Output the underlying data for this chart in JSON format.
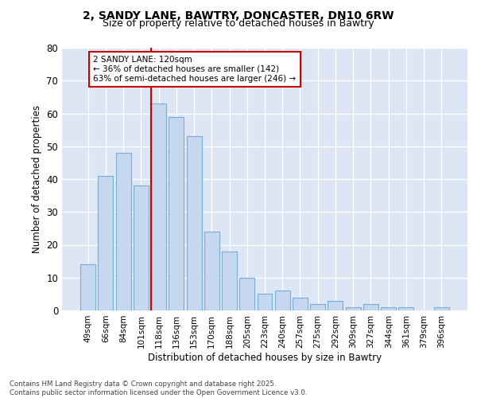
{
  "title_line1": "2, SANDY LANE, BAWTRY, DONCASTER, DN10 6RW",
  "title_line2": "Size of property relative to detached houses in Bawtry",
  "xlabel": "Distribution of detached houses by size in Bawtry",
  "ylabel": "Number of detached properties",
  "categories": [
    "49sqm",
    "66sqm",
    "84sqm",
    "101sqm",
    "118sqm",
    "136sqm",
    "153sqm",
    "170sqm",
    "188sqm",
    "205sqm",
    "223sqm",
    "240sqm",
    "257sqm",
    "275sqm",
    "292sqm",
    "309sqm",
    "327sqm",
    "344sqm",
    "361sqm",
    "379sqm",
    "396sqm"
  ],
  "values": [
    14,
    41,
    48,
    38,
    63,
    59,
    53,
    24,
    18,
    10,
    5,
    6,
    4,
    2,
    3,
    1,
    2,
    1,
    1,
    0,
    1
  ],
  "bar_color": "#c5d8ef",
  "bar_edge_color": "#7aadd4",
  "vline_color": "#cc0000",
  "annotation_text": "2 SANDY LANE: 120sqm\n← 36% of detached houses are smaller (142)\n63% of semi-detached houses are larger (246) →",
  "annotation_box_color": "#ffffff",
  "annotation_box_edge": "#cc0000",
  "ylim": [
    0,
    80
  ],
  "yticks": [
    0,
    10,
    20,
    30,
    40,
    50,
    60,
    70,
    80
  ],
  "background_color": "#dce6f5",
  "grid_color": "#ffffff",
  "fig_background": "#ffffff",
  "footer_line1": "Contains HM Land Registry data © Crown copyright and database right 2025.",
  "footer_line2": "Contains public sector information licensed under the Open Government Licence v3.0."
}
